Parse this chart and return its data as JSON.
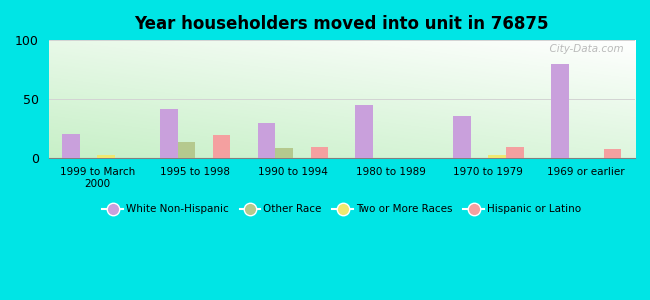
{
  "title": "Year householders moved into unit in 76875",
  "categories": [
    "1999 to March\n2000",
    "1995 to 1998",
    "1990 to 1994",
    "1980 to 1989",
    "1970 to 1979",
    "1969 or earlier"
  ],
  "white_non_hispanic": [
    20,
    41,
    29,
    45,
    35,
    80
  ],
  "other_race": [
    0,
    13,
    8,
    0,
    0,
    0
  ],
  "two_or_more_races": [
    2,
    0,
    0,
    0,
    2,
    0
  ],
  "hispanic_or_latino": [
    0,
    19,
    9,
    0,
    9,
    7
  ],
  "color_white": "#c9a0dc",
  "color_other": "#b5c98e",
  "color_two": "#f0e870",
  "color_hispanic": "#f4a0a0",
  "bg_outer": "#00e5e5",
  "ylim": [
    0,
    100
  ],
  "yticks": [
    0,
    50,
    100
  ],
  "bar_width": 0.18,
  "watermark": "  City-Data.com"
}
